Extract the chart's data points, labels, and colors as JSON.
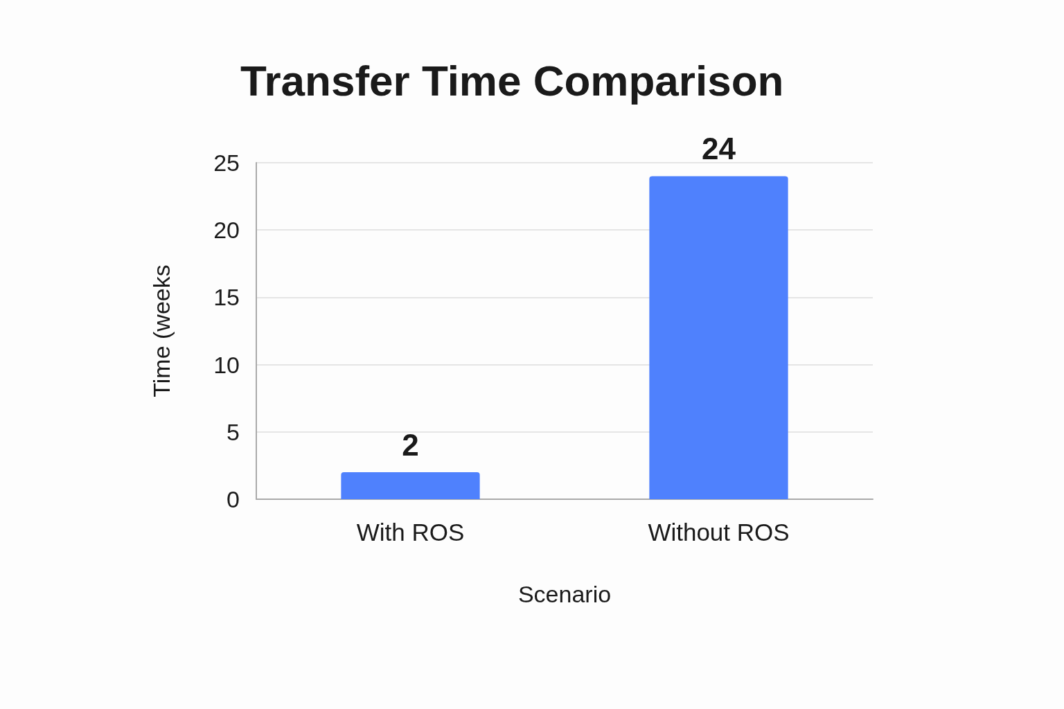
{
  "chart_data": {
    "type": "bar",
    "title": "Transfer Time Comparison",
    "xlabel": "Scenario",
    "ylabel": "Time (weeks",
    "categories": [
      "With ROS",
      "Without ROS"
    ],
    "values": [
      2,
      24
    ],
    "color": "#4f81fd",
    "ylim": [
      0,
      25
    ],
    "yticks": [
      0,
      5,
      10,
      15,
      20,
      25
    ],
    "grid": "y",
    "data_labels": true
  }
}
